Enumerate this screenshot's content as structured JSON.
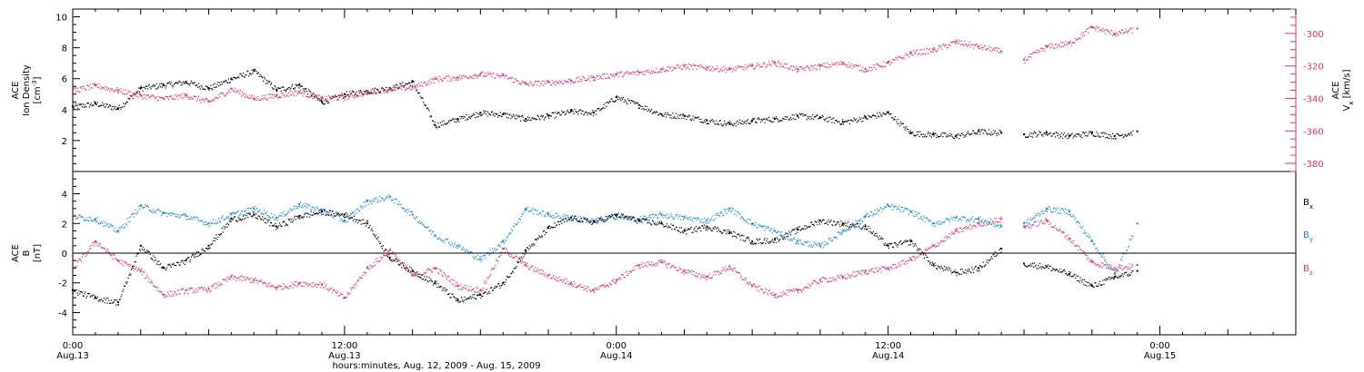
{
  "chart_data": [
    {
      "type": "scatter",
      "panel": "top",
      "ylabel": [
        "ACE",
        "Ion Density",
        "[cm^-3]"
      ],
      "ylabel_right": [
        "ACE",
        "Vx",
        "[km/s]"
      ],
      "ylim": [
        0,
        10.5
      ],
      "yticks": [
        2,
        4,
        6,
        8,
        10
      ],
      "ylim_right": [
        -385,
        -285
      ],
      "yticks_right": [
        -300,
        -320,
        -340,
        -360,
        -380
      ],
      "colors": {
        "density": "#000000",
        "vx": "#e8336a"
      },
      "series": [
        {
          "name": "Ion Density",
          "axis": "left",
          "x_hours": [
            0,
            1,
            2,
            3,
            4,
            5,
            6,
            7,
            8,
            9,
            10,
            11,
            12,
            13,
            14,
            15,
            16,
            17,
            18,
            19,
            20,
            21,
            22,
            23,
            24,
            25,
            26,
            27,
            28,
            29,
            30,
            31,
            32,
            33,
            34,
            35,
            36,
            37,
            38,
            39,
            40,
            41,
            42,
            43,
            44,
            45,
            46,
            47
          ],
          "y": [
            4.2,
            4.4,
            4.1,
            5.4,
            5.6,
            5.8,
            5.4,
            6.0,
            6.5,
            5.3,
            5.6,
            4.5,
            5.0,
            5.2,
            5.4,
            5.8,
            3.0,
            3.4,
            3.8,
            3.7,
            3.4,
            3.6,
            3.9,
            3.8,
            4.8,
            4.3,
            3.7,
            3.6,
            3.3,
            3.1,
            3.3,
            3.4,
            3.6,
            3.5,
            3.2,
            3.5,
            3.8,
            2.5,
            2.4,
            2.3,
            2.6,
            2.5,
            2.4,
            2.5,
            2.3,
            2.5,
            2.3,
            2.6
          ]
        },
        {
          "name": "Vx",
          "axis": "right",
          "x_hours": [
            0,
            1,
            2,
            3,
            4,
            5,
            6,
            7,
            8,
            9,
            10,
            11,
            12,
            13,
            14,
            15,
            16,
            17,
            18,
            19,
            20,
            21,
            22,
            23,
            24,
            25,
            26,
            27,
            28,
            29,
            30,
            31,
            32,
            33,
            34,
            35,
            36,
            37,
            38,
            39,
            40,
            41,
            42,
            43,
            44,
            45,
            46,
            47
          ],
          "y": [
            -335,
            -332,
            -335,
            -338,
            -340,
            -338,
            -342,
            -334,
            -340,
            -338,
            -336,
            -340,
            -339,
            -336,
            -334,
            -333,
            -328,
            -327,
            -325,
            -326,
            -331,
            -330,
            -329,
            -327,
            -325,
            -324,
            -322,
            -320,
            -321,
            -322,
            -320,
            -318,
            -322,
            -320,
            -318,
            -322,
            -318,
            -312,
            -310,
            -305,
            -308,
            -311,
            -316,
            -308,
            -306,
            -296,
            -300,
            -297
          ]
        }
      ]
    },
    {
      "type": "scatter",
      "panel": "bottom",
      "ylabel": [
        "ACE",
        "B",
        "[nT]"
      ],
      "ylim": [
        -5.5,
        5.5
      ],
      "yticks": [
        4,
        2,
        0,
        -2,
        -4
      ],
      "zero_line": true,
      "colors": {
        "Bx": "#000000",
        "By": "#1e88e5",
        "Bz": "#e8336a"
      },
      "series": [
        {
          "name": "Bx",
          "x_hours": [
            0,
            1,
            2,
            3,
            4,
            5,
            6,
            7,
            8,
            9,
            10,
            11,
            12,
            13,
            14,
            15,
            16,
            17,
            18,
            19,
            20,
            21,
            22,
            23,
            24,
            25,
            26,
            27,
            28,
            29,
            30,
            31,
            32,
            33,
            34,
            35,
            36,
            37,
            38,
            39,
            40,
            41,
            42,
            43,
            44,
            45,
            46,
            47
          ],
          "y": [
            -2.5,
            -3.0,
            -3.3,
            0.5,
            -1.0,
            -0.5,
            0.5,
            2.3,
            2.6,
            1.8,
            2.5,
            2.8,
            2.6,
            2.0,
            -0.3,
            -1.2,
            -2.0,
            -3.2,
            -2.8,
            -2.0,
            0.2,
            1.7,
            2.4,
            2.1,
            2.6,
            2.2,
            2.0,
            1.5,
            1.8,
            1.4,
            0.8,
            0.9,
            1.6,
            2.2,
            2.0,
            1.8,
            0.5,
            0.8,
            -0.8,
            -1.3,
            -1.0,
            0.3,
            -0.7,
            -0.9,
            -1.4,
            -2.2,
            -1.6,
            -1.2
          ]
        },
        {
          "name": "By",
          "x_hours": [
            0,
            1,
            2,
            3,
            4,
            5,
            6,
            7,
            8,
            9,
            10,
            11,
            12,
            13,
            14,
            15,
            16,
            17,
            18,
            19,
            20,
            21,
            22,
            23,
            24,
            25,
            26,
            27,
            28,
            29,
            30,
            31,
            32,
            33,
            34,
            35,
            36,
            37,
            38,
            39,
            40,
            41,
            42,
            43,
            44,
            45,
            46,
            47
          ],
          "y": [
            2.5,
            2.3,
            1.5,
            3.2,
            2.7,
            2.5,
            2.0,
            2.6,
            3.0,
            2.4,
            3.3,
            2.9,
            2.2,
            3.5,
            3.8,
            2.6,
            1.2,
            0.5,
            -0.4,
            0.8,
            3.0,
            2.6,
            2.4,
            2.2,
            2.5,
            2.3,
            2.6,
            2.4,
            2.2,
            3.0,
            2.0,
            1.5,
            0.8,
            0.5,
            1.5,
            2.5,
            3.2,
            2.8,
            2.0,
            2.4,
            2.3,
            1.8,
            2.0,
            3.0,
            2.8,
            0.8,
            -1.4,
            2.0
          ]
        },
        {
          "name": "Bz",
          "x_hours": [
            0,
            1,
            2,
            3,
            4,
            5,
            6,
            7,
            8,
            9,
            10,
            11,
            12,
            13,
            14,
            15,
            16,
            17,
            18,
            19,
            20,
            21,
            22,
            23,
            24,
            25,
            26,
            27,
            28,
            29,
            30,
            31,
            32,
            33,
            34,
            35,
            36,
            37,
            38,
            39,
            40,
            41,
            42,
            43,
            44,
            45,
            46,
            47
          ],
          "y": [
            -1.0,
            0.8,
            -0.5,
            -1.2,
            -2.8,
            -2.5,
            -2.4,
            -1.6,
            -1.8,
            -2.3,
            -2.0,
            -2.1,
            -3.0,
            -1.0,
            0.2,
            -1.5,
            -1.0,
            -2.2,
            -2.5,
            0.3,
            -0.8,
            -1.5,
            -2.0,
            -2.5,
            -1.8,
            -0.8,
            -0.6,
            -1.2,
            -1.6,
            -0.9,
            -2.2,
            -2.8,
            -2.5,
            -1.8,
            -1.6,
            -1.2,
            -1.0,
            -0.4,
            0.5,
            1.5,
            2.0,
            2.3,
            1.8,
            2.2,
            1.0,
            -0.6,
            -1.0,
            -0.8
          ]
        }
      ],
      "legend": {
        "placement": "right",
        "labels": [
          "Bx",
          "By",
          "Bz"
        ]
      }
    }
  ],
  "x_axis": {
    "title": "hours:minutes, Aug. 12, 2009 - Aug. 15, 2009",
    "xlim_hours": [
      0,
      54
    ],
    "major_ticks": [
      {
        "hours": 0,
        "time": "0:00",
        "date": "Aug.13"
      },
      {
        "hours": 12,
        "time": "12:00",
        "date": "Aug.13"
      },
      {
        "hours": 24,
        "time": "0:00",
        "date": "Aug.14"
      },
      {
        "hours": 36,
        "time": "12:00",
        "date": "Aug.14"
      },
      {
        "hours": 48,
        "time": "0:00",
        "date": "Aug.15"
      }
    ]
  }
}
